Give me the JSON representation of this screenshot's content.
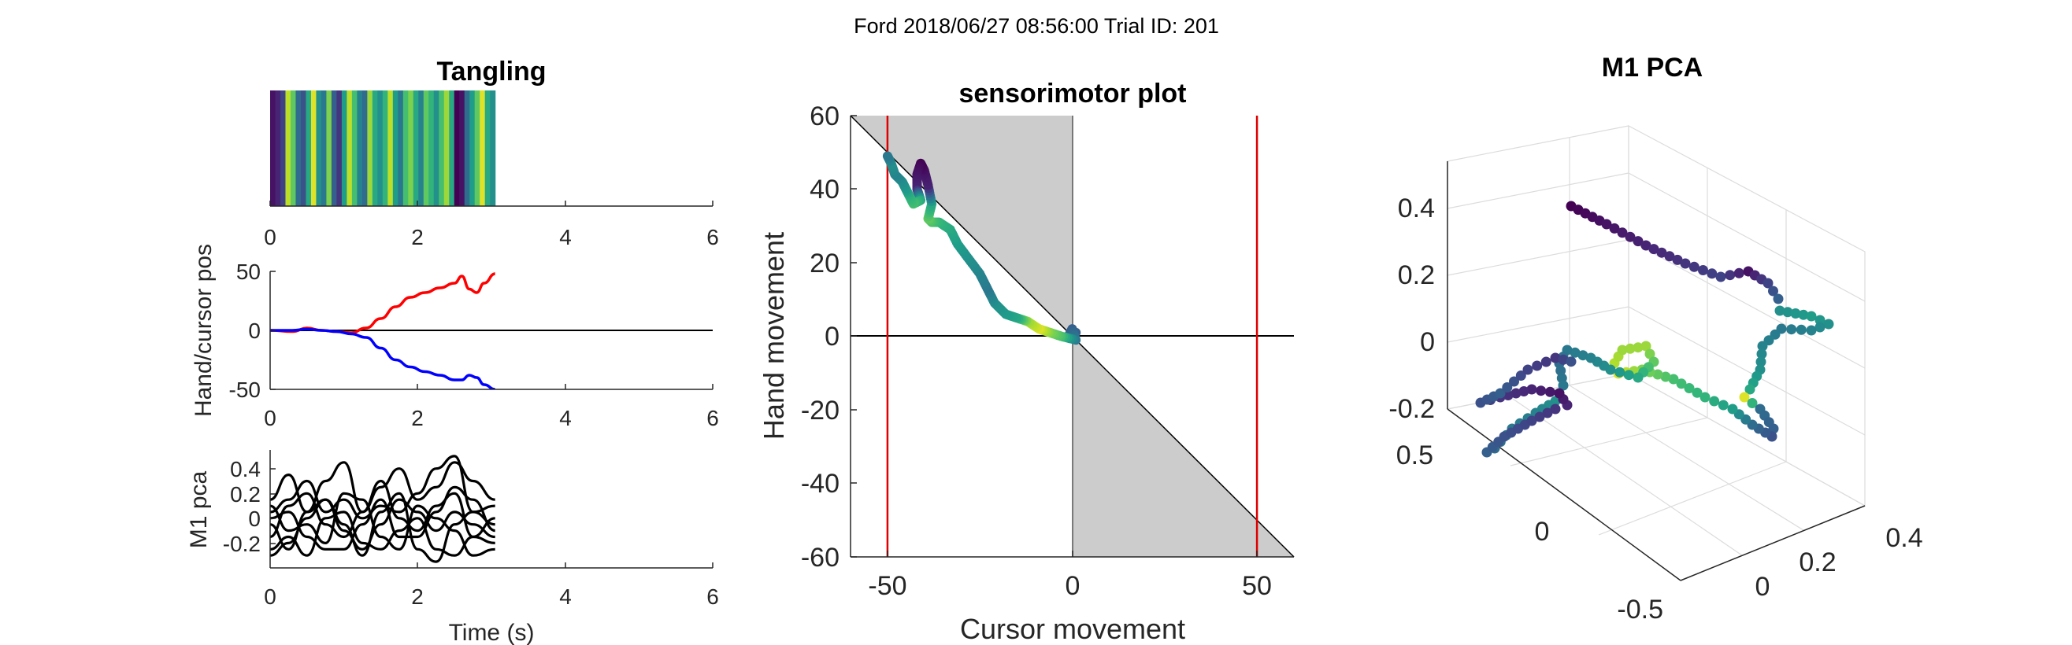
{
  "header": {
    "text": "Ford 2018/06/27 08:56:00 Trial ID: 201"
  },
  "colors": {
    "viridis": [
      "#440154",
      "#482878",
      "#3e4989",
      "#31688e",
      "#26828e",
      "#1f9e89",
      "#35b779",
      "#6ece58",
      "#b5de2b",
      "#fde725"
    ],
    "cursor": "#ff0000",
    "hand": "#0000ff",
    "shade": "#cccccc",
    "bound": "#e00000"
  },
  "chart_data": [
    {
      "id": "tangling",
      "type": "heatmap",
      "title": "Tangling",
      "xlim": [
        0,
        6
      ],
      "xticks": [
        "0",
        "2",
        "4",
        "6"
      ],
      "data_end": 3.05,
      "stripes": [
        0.05,
        0.1,
        0.2,
        0.9,
        0.75,
        0.35,
        0.25,
        0.6,
        0.95,
        0.5,
        0.4,
        0.8,
        0.3,
        0.15,
        0.55,
        0.9,
        0.7,
        0.45,
        0.35,
        0.85,
        0.6,
        0.5,
        0.65,
        0.9,
        0.55,
        0.4,
        0.7,
        0.8,
        0.6,
        0.45,
        0.75,
        0.65,
        0.5,
        0.7,
        0.85,
        0.6,
        0.0,
        0.05,
        0.35,
        0.55,
        0.75,
        0.95,
        0.6,
        0.5
      ]
    },
    {
      "id": "handcursor",
      "type": "line",
      "ylabel": "Hand/cursor pos",
      "xlim": [
        0,
        6
      ],
      "ylim": [
        -50,
        50
      ],
      "xticks": [
        "0",
        "2",
        "4",
        "6"
      ],
      "yticks": [
        "50",
        "0",
        "-50"
      ],
      "series": [
        {
          "color": "red",
          "x": [
            0,
            0.3,
            0.5,
            0.7,
            0.9,
            1.1,
            1.3,
            1.5,
            1.7,
            1.9,
            2.1,
            2.3,
            2.5,
            2.6,
            2.7,
            2.8,
            2.9,
            3.05
          ],
          "y": [
            0,
            -1,
            2,
            0,
            -1,
            -2,
            2,
            10,
            20,
            28,
            32,
            36,
            40,
            46,
            35,
            32,
            40,
            48
          ]
        },
        {
          "color": "blue",
          "x": [
            0,
            0.3,
            0.5,
            0.7,
            0.9,
            1.1,
            1.3,
            1.5,
            1.7,
            1.9,
            2.1,
            2.3,
            2.5,
            2.6,
            2.7,
            2.8,
            2.9,
            3.05
          ],
          "y": [
            0,
            0,
            1,
            0,
            -1,
            -3,
            -6,
            -15,
            -25,
            -31,
            -35,
            -38,
            -42,
            -42,
            -38,
            -40,
            -46,
            -50
          ]
        }
      ]
    },
    {
      "id": "m1pca",
      "type": "line",
      "xlabel": "Time (s)",
      "ylabel": "M1 pca",
      "xlim": [
        0,
        6
      ],
      "ylim": [
        -0.35,
        0.6
      ],
      "xticks": [
        "0",
        "2",
        "4",
        "6"
      ],
      "yticks": [
        "0.4",
        "0.2",
        "0",
        "-0.2"
      ],
      "x": [
        0,
        0.25,
        0.5,
        0.75,
        1,
        1.25,
        1.5,
        1.75,
        2,
        2.25,
        2.5,
        2.75,
        3.05
      ],
      "series": [
        {
          "y": [
            0.2,
            0.4,
            0.1,
            0.35,
            0.5,
            0.1,
            0.3,
            0.45,
            0.2,
            0.3,
            0.5,
            0.35,
            0.2
          ]
        },
        {
          "y": [
            0.1,
            0.2,
            0.35,
            0.1,
            0.2,
            0.05,
            0.15,
            0.1,
            0.25,
            0.45,
            0.55,
            0.1,
            0.0
          ]
        },
        {
          "y": [
            -0.1,
            0.15,
            0.25,
            0.0,
            -0.1,
            0.1,
            0.35,
            0.05,
            -0.05,
            0.15,
            0.25,
            -0.1,
            -0.15
          ]
        },
        {
          "y": [
            0.0,
            -0.2,
            0.1,
            0.2,
            -0.05,
            -0.2,
            0.0,
            0.2,
            0.1,
            -0.05,
            0.1,
            0.0,
            -0.1
          ]
        },
        {
          "y": [
            -0.2,
            -0.1,
            -0.25,
            0.05,
            0.1,
            -0.15,
            -0.2,
            -0.05,
            0.05,
            -0.2,
            -0.25,
            -0.1,
            0.05
          ]
        },
        {
          "y": [
            0.15,
            -0.05,
            0.0,
            -0.15,
            0.25,
            0.2,
            -0.1,
            -0.2,
            0.15,
            0.05,
            -0.05,
            -0.25,
            -0.2
          ]
        },
        {
          "y": [
            -0.25,
            -0.15,
            0.05,
            0.2,
            0.0,
            -0.25,
            0.1,
            0.25,
            -0.2,
            -0.3,
            0.0,
            0.1,
            0.15
          ]
        },
        {
          "y": [
            0.05,
            0.1,
            -0.1,
            -0.2,
            -0.2,
            0.0,
            0.2,
            -0.1,
            -0.1,
            0.1,
            0.3,
            0.2,
            -0.05
          ]
        }
      ]
    },
    {
      "id": "sensorimotor",
      "type": "scatter",
      "title": "sensorimotor plot",
      "xlabel": "Cursor movement",
      "ylabel": "Hand movement",
      "xlim": [
        -60,
        60
      ],
      "ylim": [
        -60,
        60
      ],
      "xticks": [
        "-50",
        "0",
        "50"
      ],
      "yticks": [
        "60",
        "40",
        "20",
        "0",
        "-20",
        "-40",
        "-60"
      ],
      "bounds": [
        -50,
        50
      ],
      "points": [
        [
          1,
          1,
          0.3
        ],
        [
          -1,
          0,
          0.35
        ],
        [
          0,
          2,
          0.3
        ],
        [
          1,
          -1,
          0.4
        ],
        [
          -3,
          0,
          0.7
        ],
        [
          -6,
          1,
          0.8
        ],
        [
          -9,
          2,
          0.95
        ],
        [
          -12,
          4,
          0.85
        ],
        [
          -15,
          5,
          0.6
        ],
        [
          -18,
          6,
          0.55
        ],
        [
          -21,
          9,
          0.5
        ],
        [
          -23,
          13,
          0.4
        ],
        [
          -25,
          17,
          0.45
        ],
        [
          -28,
          21,
          0.5
        ],
        [
          -31,
          25,
          0.55
        ],
        [
          -33,
          29,
          0.6
        ],
        [
          -36,
          31,
          0.65
        ],
        [
          -38,
          31,
          0.7
        ],
        [
          -39,
          32,
          0.75
        ],
        [
          -38,
          36,
          0.6
        ],
        [
          -39,
          41,
          0.1
        ],
        [
          -40,
          45,
          0.05
        ],
        [
          -41,
          47,
          0.0
        ],
        [
          -42,
          44,
          0.05
        ],
        [
          -42,
          40,
          0.1
        ],
        [
          -41,
          37,
          0.6
        ],
        [
          -43,
          36,
          0.7
        ],
        [
          -44,
          38,
          0.65
        ],
        [
          -45,
          40,
          0.55
        ],
        [
          -46,
          42,
          0.5
        ],
        [
          -48,
          44,
          0.45
        ],
        [
          -49,
          47,
          0.5
        ],
        [
          -50,
          49,
          0.4
        ]
      ]
    },
    {
      "id": "pca3d",
      "type": "scatter",
      "title": "M1 PCA",
      "zticks": [
        "0.4",
        "0.2",
        "0",
        "-0.2"
      ],
      "yticks": [
        "0.5",
        "0",
        "-0.5"
      ],
      "xticks": [
        "0",
        "0.2",
        "0.4"
      ]
    }
  ]
}
